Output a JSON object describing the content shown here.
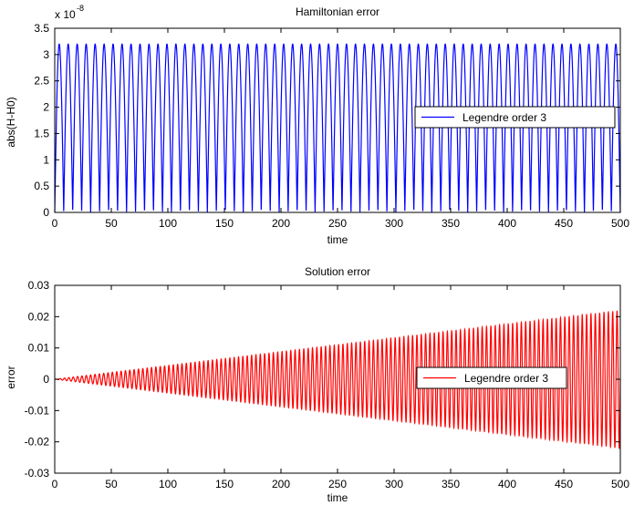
{
  "chart_data": [
    {
      "type": "line",
      "title": "Hamiltonian error",
      "xlabel": "time",
      "ylabel": "abs(H-H0)",
      "exponent_base": "x 10",
      "exponent_power": "-8",
      "xlim": [
        0,
        500
      ],
      "ylim": [
        0,
        3.5
      ],
      "xticks": [
        "0",
        "50",
        "100",
        "150",
        "200",
        "250",
        "300",
        "350",
        "400",
        "450",
        "500"
      ],
      "yticks": [
        "0",
        "0.5",
        "1",
        "1.5",
        "2",
        "2.5",
        "3",
        "3.5"
      ],
      "xtick_values": [
        0,
        50,
        100,
        150,
        200,
        250,
        300,
        350,
        400,
        450,
        500
      ],
      "ytick_values": [
        0,
        0.5,
        1,
        1.5,
        2,
        2.5,
        3,
        3.5
      ],
      "legend": "right",
      "grid": false,
      "series": [
        {
          "name": "Legendre order 3",
          "color": "#0000ff",
          "description_function": "abs_sine",
          "amplitude": 3.2,
          "cycles": 63,
          "x_start": 0,
          "x_end": 500
        }
      ]
    },
    {
      "type": "line",
      "title": "Solution error",
      "xlabel": "time",
      "ylabel": "error",
      "xlim": [
        0,
        500
      ],
      "ylim": [
        -0.03,
        0.03
      ],
      "xticks": [
        "0",
        "50",
        "100",
        "150",
        "200",
        "250",
        "300",
        "350",
        "400",
        "450",
        "500"
      ],
      "yticks": [
        "-0.03",
        "-0.02",
        "-0.01",
        "0",
        "0.01",
        "0.02",
        "0.03"
      ],
      "xtick_values": [
        0,
        50,
        100,
        150,
        200,
        250,
        300,
        350,
        400,
        450,
        500
      ],
      "ytick_values": [
        -0.03,
        -0.02,
        -0.01,
        0,
        0.01,
        0.02,
        0.03
      ],
      "legend": "right",
      "grid": false,
      "series": [
        {
          "name": "Legendre order 3",
          "color": "#ff0000",
          "description_function": "growing_oscillation",
          "max_amplitude": 0.022,
          "cycles": 130,
          "x_start": 0,
          "x_end": 500
        }
      ]
    }
  ]
}
